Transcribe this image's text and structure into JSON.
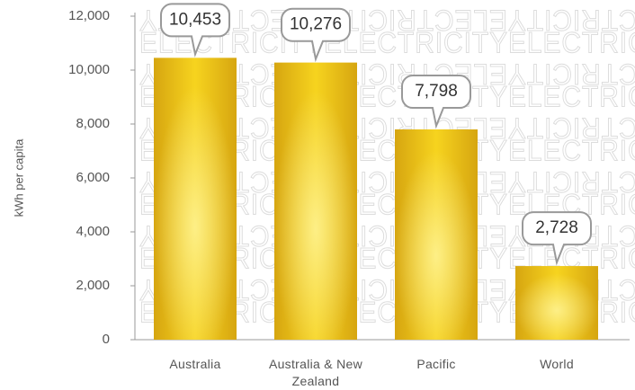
{
  "chart_data": {
    "type": "bar",
    "y_label": "kWh per capita",
    "watermark": "ELECTRICITY",
    "categories": [
      "Australia",
      "Australia & New Zealand",
      "Pacific",
      "World"
    ],
    "values": [
      10453,
      10276,
      7798,
      2728
    ],
    "value_labels": [
      "10,453",
      "10,276",
      "7,798",
      "2,728"
    ],
    "color": "#e8b917",
    "ylim": [
      0,
      12000
    ],
    "yticks": [
      0,
      {
        "value": 2000,
        "label": "2,000"
      },
      {
        "value": 4000,
        "label": "4,000"
      },
      {
        "value": 6000,
        "label": "6,000"
      },
      {
        "value": 8000,
        "label": "8,000"
      },
      {
        "value": 10000,
        "label": "10,000"
      },
      {
        "value": 12000,
        "label": "12,000"
      }
    ],
    "grid": false
  }
}
